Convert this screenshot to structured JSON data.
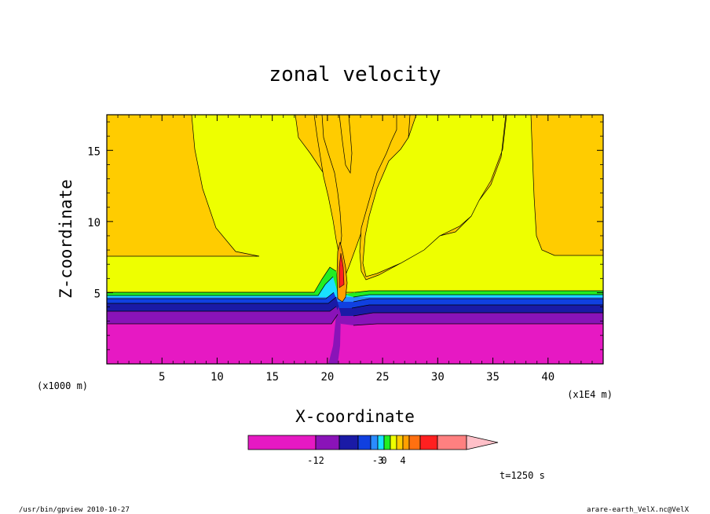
{
  "chart_data": {
    "type": "heatmap",
    "title": "zonal velocity",
    "xlabel": "X-coordinate",
    "ylabel": "Z-coordinate",
    "x_unit": "(x1E4 m)",
    "y_unit": "(x1000 m)",
    "xlim": [
      0,
      45
    ],
    "ylim": [
      0,
      17.5
    ],
    "x_ticks": [
      "5",
      "10",
      "15",
      "20",
      "25",
      "30",
      "35",
      "40"
    ],
    "y_ticks": [
      "5",
      "10",
      "15"
    ],
    "colorbar": {
      "levels": [
        {
          "color": "#e619c3"
        },
        {
          "color": "#8a13b8"
        },
        {
          "color": "#1a1aa6"
        },
        {
          "color": "#1040e0"
        },
        {
          "color": "#2a8cff"
        },
        {
          "color": "#19e0ff"
        },
        {
          "color": "#22ee22"
        },
        {
          "color": "#eeff00"
        },
        {
          "color": "#ffcc00"
        },
        {
          "color": "#ffa000"
        },
        {
          "color": "#ff7010"
        },
        {
          "color": "#ff2020"
        },
        {
          "color": "#ff8080"
        },
        {
          "color": "#ffc0c8"
        }
      ],
      "tick_labels": [
        "-12",
        "-3",
        "0",
        "4"
      ]
    },
    "time_label": "t=1250 s",
    "footer_left": "/usr/bin/gpview   2010-10-27",
    "footer_right": "arare-earth_VelX.nc@VelX"
  }
}
